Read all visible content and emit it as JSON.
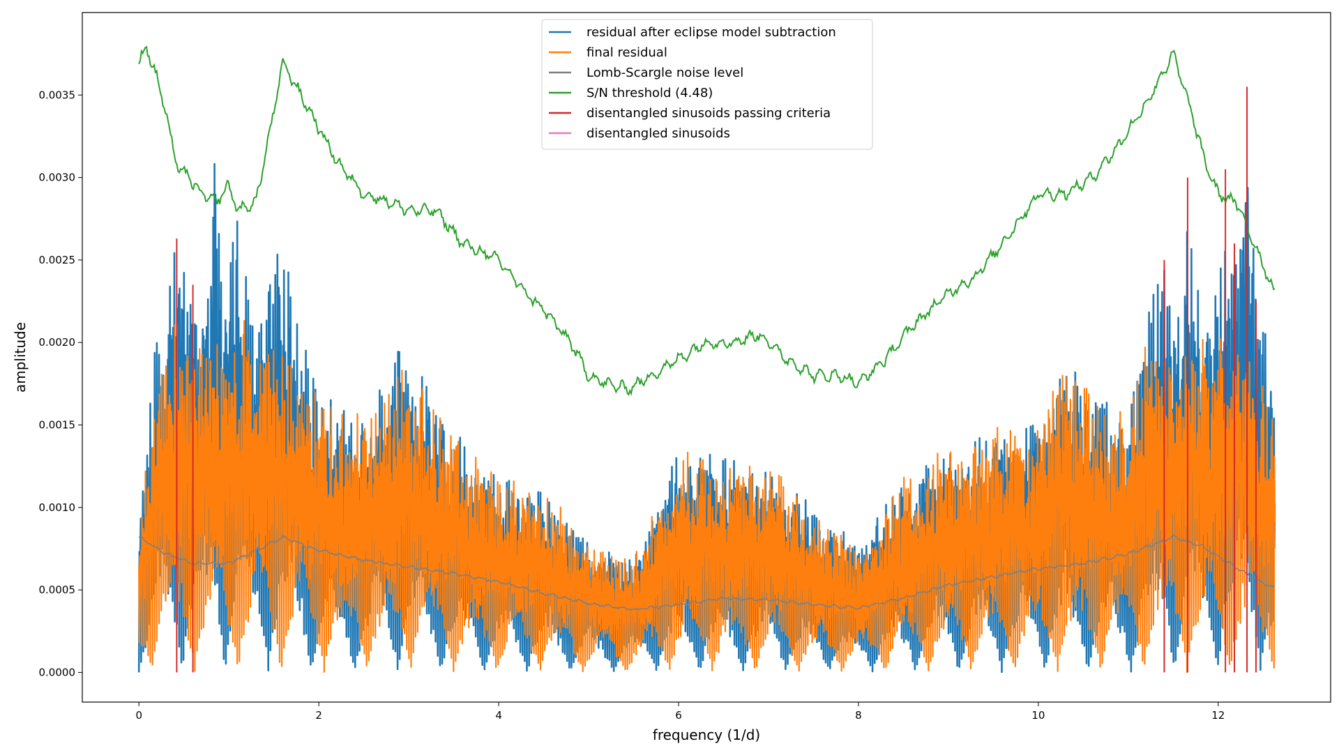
{
  "chart_data": {
    "type": "line",
    "title": "",
    "xlabel": "frequency (1/d)",
    "ylabel": "amplitude",
    "xlim": [
      -0.63,
      13.25
    ],
    "ylim": [
      -0.00018,
      0.004
    ],
    "xticks": [
      0,
      2,
      4,
      6,
      8,
      10,
      12
    ],
    "xtick_labels": [
      "0",
      "2",
      "4",
      "6",
      "8",
      "10",
      "12"
    ],
    "yticks": [
      0.0,
      0.0005,
      0.001,
      0.0015,
      0.002,
      0.0025,
      0.003,
      0.0035
    ],
    "ytick_labels": [
      "0.0000",
      "0.0005",
      "0.0010",
      "0.0015",
      "0.0020",
      "0.0025",
      "0.0030",
      "0.0035"
    ],
    "grid": false,
    "legend_position": "top-center",
    "series": [
      {
        "name": "residual after eclipse model subtraction",
        "color": "#1f77b4",
        "kind": "periodogram",
        "envelope_x": [
          0.0,
          0.2,
          0.42,
          0.6,
          0.75,
          0.84,
          0.95,
          1.08,
          1.3,
          1.52,
          1.76,
          2.0,
          2.5,
          2.9,
          3.5,
          4.0,
          4.6,
          5.0,
          5.5,
          6.0,
          6.5,
          7.0,
          7.5,
          8.0,
          8.5,
          9.0,
          9.5,
          10.0,
          10.25,
          10.6,
          11.0,
          11.2,
          11.4,
          11.55,
          11.67,
          11.8,
          11.95,
          12.1,
          12.2,
          12.32,
          12.42,
          12.55,
          12.63
        ],
        "envelope_y": [
          0.001,
          0.0021,
          0.0027,
          0.0024,
          0.0025,
          0.00325,
          0.00247,
          0.0028,
          0.0022,
          0.0026,
          0.00242,
          0.0017,
          0.0016,
          0.00207,
          0.0015,
          0.0012,
          0.0011,
          0.0008,
          0.0007,
          0.00142,
          0.0013,
          0.0013,
          0.001,
          0.0008,
          0.0012,
          0.0014,
          0.0015,
          0.0016,
          0.002,
          0.0017,
          0.0016,
          0.0022,
          0.0025,
          0.0022,
          0.0029,
          0.0022,
          0.0023,
          0.0029,
          0.0026,
          0.0035,
          0.0023,
          0.0021,
          0.0017
        ]
      },
      {
        "name": "final residual",
        "color": "#ff7f0e",
        "kind": "periodogram",
        "envelope_x": [
          0.0,
          0.2,
          0.4,
          0.6,
          0.84,
          1.0,
          1.25,
          1.5,
          1.8,
          2.0,
          2.5,
          2.9,
          3.5,
          4.0,
          4.6,
          5.0,
          5.5,
          6.0,
          6.5,
          7.0,
          7.5,
          8.0,
          8.5,
          9.0,
          9.5,
          10.0,
          10.25,
          10.6,
          11.0,
          11.2,
          11.4,
          11.55,
          11.67,
          11.8,
          11.95,
          12.1,
          12.32,
          12.45,
          12.63
        ],
        "envelope_y": [
          0.0009,
          0.0019,
          0.0022,
          0.002,
          0.0021,
          0.0021,
          0.0023,
          0.0021,
          0.002,
          0.0017,
          0.0016,
          0.0019,
          0.0015,
          0.0012,
          0.0011,
          0.0008,
          0.0007,
          0.0014,
          0.0013,
          0.0013,
          0.001,
          0.0008,
          0.0012,
          0.0014,
          0.0015,
          0.0016,
          0.0019,
          0.0017,
          0.0016,
          0.0021,
          0.0021,
          0.0021,
          0.0022,
          0.0021,
          0.0022,
          0.0021,
          0.0022,
          0.0019,
          0.0016
        ]
      },
      {
        "name": "Lomb-Scargle noise level",
        "color": "#7f7f7f",
        "x": [
          0.0,
          0.3,
          0.6,
          1.0,
          1.6,
          2.0,
          2.5,
          3.0,
          3.5,
          4.0,
          4.5,
          5.0,
          5.5,
          6.0,
          6.5,
          7.0,
          7.5,
          8.0,
          8.5,
          9.0,
          9.5,
          10.0,
          10.5,
          11.0,
          11.5,
          11.8,
          12.1,
          12.4,
          12.63
        ],
        "y": [
          0.00082,
          0.00072,
          0.00066,
          0.00066,
          0.00082,
          0.00074,
          0.00068,
          0.00064,
          0.0006,
          0.00055,
          0.00048,
          0.00042,
          0.00038,
          0.00041,
          0.00045,
          0.00044,
          0.00041,
          0.00039,
          0.00045,
          0.00053,
          0.00058,
          0.00063,
          0.00066,
          0.00072,
          0.00082,
          0.00077,
          0.00067,
          0.00057,
          0.00051
        ]
      },
      {
        "name": "S/N threshold (4.48)",
        "color": "#2ca02c",
        "x": [
          0.0,
          0.08,
          0.2,
          0.3,
          0.4,
          0.55,
          0.7,
          0.85,
          1.0,
          1.1,
          1.3,
          1.5,
          1.6,
          1.8,
          2.0,
          2.2,
          2.5,
          2.8,
          3.0,
          3.3,
          3.6,
          4.0,
          4.3,
          4.5,
          4.8,
          5.0,
          5.2,
          5.45,
          5.7,
          6.0,
          6.3,
          6.6,
          6.9,
          7.2,
          7.5,
          7.8,
          8.0,
          8.3,
          8.6,
          9.0,
          9.3,
          9.6,
          10.0,
          10.3,
          10.6,
          10.9,
          11.2,
          11.5,
          11.7,
          11.85,
          12.0,
          12.2,
          12.4,
          12.63
        ],
        "y": [
          0.00369,
          0.0038,
          0.0036,
          0.0034,
          0.0031,
          0.003,
          0.0029,
          0.00285,
          0.00295,
          0.0028,
          0.00285,
          0.0034,
          0.0037,
          0.0035,
          0.0033,
          0.0031,
          0.0029,
          0.00285,
          0.0028,
          0.0028,
          0.0026,
          0.0025,
          0.0023,
          0.0022,
          0.002,
          0.0018,
          0.00175,
          0.00172,
          0.0018,
          0.0019,
          0.002,
          0.002,
          0.00205,
          0.0019,
          0.0018,
          0.0018,
          0.00175,
          0.0019,
          0.0021,
          0.0023,
          0.0024,
          0.0026,
          0.0029,
          0.0029,
          0.003,
          0.0032,
          0.00345,
          0.00375,
          0.0034,
          0.0031,
          0.0029,
          0.00285,
          0.0026,
          0.0023
        ]
      },
      {
        "name": "disentangled sinusoids passing criteria",
        "color": "#d62728",
        "kind": "stems",
        "freqs": [
          0.42,
          0.6,
          11.4,
          11.66,
          12.08,
          12.18,
          12.32,
          12.42
        ],
        "amps": [
          0.00263,
          0.00235,
          0.0025,
          0.003,
          0.00305,
          0.0026,
          0.00355,
          0.00225
        ]
      },
      {
        "name": "disentangled sinusoids",
        "color": "#e377c2",
        "kind": "stems",
        "freqs": [],
        "amps": []
      }
    ]
  }
}
